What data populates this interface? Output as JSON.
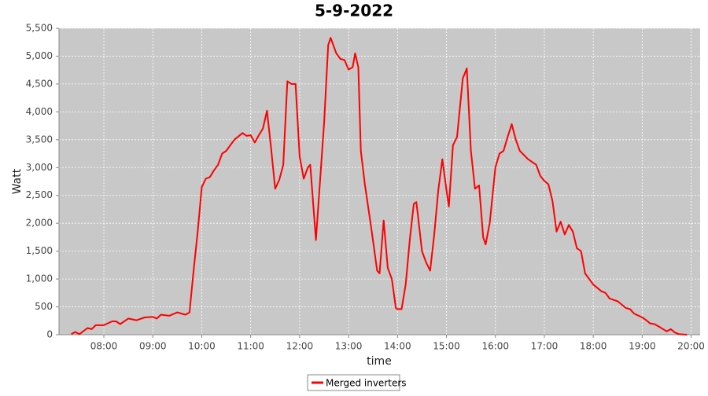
{
  "chart_data": {
    "type": "line",
    "title": "5-9-2022",
    "x_label": "time",
    "y_label": "Watt",
    "x": [
      "07:20",
      "07:25",
      "07:30",
      "07:40",
      "07:45",
      "07:50",
      "08:00",
      "08:10",
      "08:15",
      "08:20",
      "08:30",
      "08:40",
      "08:50",
      "09:00",
      "09:05",
      "09:10",
      "09:20",
      "09:30",
      "09:40",
      "09:45",
      "09:50",
      "09:55",
      "10:00",
      "10:05",
      "10:10",
      "10:15",
      "10:20",
      "10:25",
      "10:30",
      "10:40",
      "10:50",
      "10:55",
      "11:00",
      "11:05",
      "11:10",
      "11:15",
      "11:20",
      "11:25",
      "11:30",
      "11:35",
      "11:40",
      "11:45",
      "11:50",
      "11:55",
      "12:00",
      "12:05",
      "12:10",
      "12:13",
      "12:20",
      "12:30",
      "12:35",
      "12:38",
      "12:45",
      "12:50",
      "12:55",
      "13:00",
      "13:05",
      "13:08",
      "13:12",
      "13:15",
      "13:20",
      "13:28",
      "13:35",
      "13:38",
      "13:43",
      "13:48",
      "13:53",
      "13:58",
      "14:00",
      "14:05",
      "14:10",
      "14:15",
      "14:20",
      "14:23",
      "14:25",
      "14:30",
      "14:35",
      "14:40",
      "14:45",
      "14:50",
      "14:55",
      "15:00",
      "15:03",
      "15:08",
      "15:13",
      "15:20",
      "15:25",
      "15:30",
      "15:35",
      "15:40",
      "15:45",
      "15:48",
      "15:53",
      "16:00",
      "16:05",
      "16:10",
      "16:15",
      "16:20",
      "16:25",
      "16:30",
      "16:40",
      "16:50",
      "16:55",
      "17:00",
      "17:05",
      "17:10",
      "17:15",
      "17:20",
      "17:25",
      "17:30",
      "17:35",
      "17:40",
      "17:45",
      "17:50",
      "18:00",
      "18:10",
      "18:15",
      "18:20",
      "18:30",
      "18:40",
      "18:45",
      "18:50",
      "19:00",
      "19:05",
      "19:10",
      "19:15",
      "19:20",
      "19:30",
      "19:35",
      "19:40",
      "19:45",
      "19:55"
    ],
    "series": [
      {
        "name": "Merged inverters",
        "color": "#ff0000",
        "values": [
          10,
          50,
          10,
          120,
          100,
          170,
          170,
          240,
          240,
          190,
          290,
          260,
          310,
          320,
          290,
          360,
          340,
          400,
          360,
          400,
          1150,
          1850,
          2650,
          2800,
          2830,
          2950,
          3050,
          3250,
          3300,
          3500,
          3620,
          3570,
          3580,
          3450,
          3580,
          3700,
          4020,
          3350,
          2620,
          2780,
          3050,
          4550,
          4500,
          4500,
          3200,
          2800,
          3000,
          3050,
          1700,
          3800,
          5200,
          5330,
          5050,
          4950,
          4930,
          4760,
          4800,
          5050,
          4800,
          3300,
          2700,
          1900,
          1150,
          1100,
          2050,
          1200,
          1000,
          480,
          460,
          460,
          900,
          1700,
          2350,
          2380,
          2150,
          1500,
          1300,
          1150,
          1800,
          2600,
          3150,
          2600,
          2300,
          3400,
          3550,
          4600,
          4780,
          3300,
          2620,
          2680,
          1750,
          1620,
          2000,
          3000,
          3250,
          3300,
          3550,
          3780,
          3500,
          3300,
          3150,
          3050,
          2850,
          2760,
          2700,
          2400,
          1850,
          2030,
          1800,
          1970,
          1850,
          1550,
          1500,
          1100,
          900,
          780,
          750,
          650,
          600,
          480,
          460,
          380,
          310,
          260,
          200,
          190,
          150,
          60,
          100,
          40,
          10,
          0
        ]
      }
    ],
    "xlim": [
      "07:05",
      "20:11"
    ],
    "xticks": [
      "08:00",
      "09:00",
      "10:00",
      "11:00",
      "12:00",
      "13:00",
      "14:00",
      "15:00",
      "16:00",
      "17:00",
      "18:00",
      "19:00",
      "20:00"
    ],
    "ylim": [
      0,
      5500
    ],
    "yticks": [
      0,
      500,
      {
        "value": 1000,
        "label": "1,000"
      },
      {
        "value": 1500,
        "label": "1,500"
      },
      {
        "value": 2000,
        "label": "2,000"
      },
      {
        "value": 2500,
        "label": "2,500"
      },
      {
        "value": 3000,
        "label": "3,000"
      },
      {
        "value": 3500,
        "label": "3,500"
      },
      {
        "value": 4000,
        "label": "4,000"
      },
      {
        "value": 4500,
        "label": "4,500"
      },
      {
        "value": 5000,
        "label": "5,000"
      },
      {
        "value": 5500,
        "label": "5,500"
      }
    ],
    "grid": true,
    "legend": "bottom"
  }
}
